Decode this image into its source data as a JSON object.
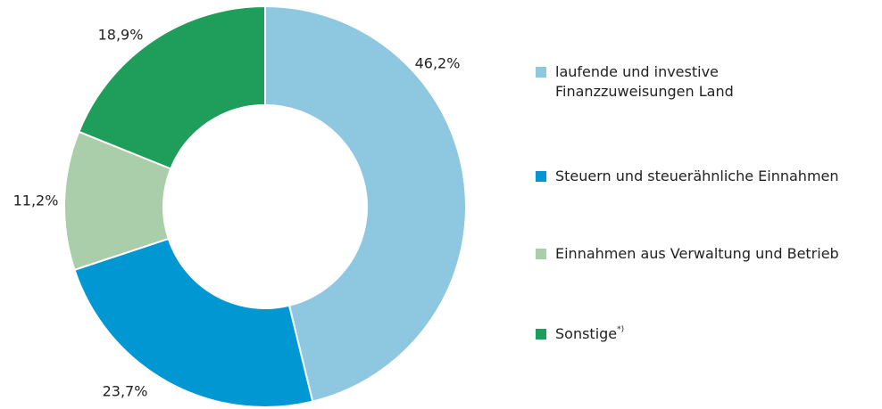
{
  "chart_data": {
    "type": "pie",
    "categories": [
      "laufende und investive Finanzzuweisungen Land",
      "Steuern und steuerähnliche Einnahmen",
      "Einnahmen aus Verwaltung und Betrieb",
      "Sonstige"
    ],
    "superscripts": [
      null,
      null,
      null,
      "*)"
    ],
    "values": [
      46.2,
      23.7,
      11.2,
      18.9
    ],
    "value_labels": [
      "46,2%",
      "23,7%",
      "11,2%",
      "18,9%"
    ],
    "colors": [
      "#8dc8e0",
      "#0097d3",
      "#aacea9",
      "#1f9d5b"
    ],
    "legend": "right"
  }
}
